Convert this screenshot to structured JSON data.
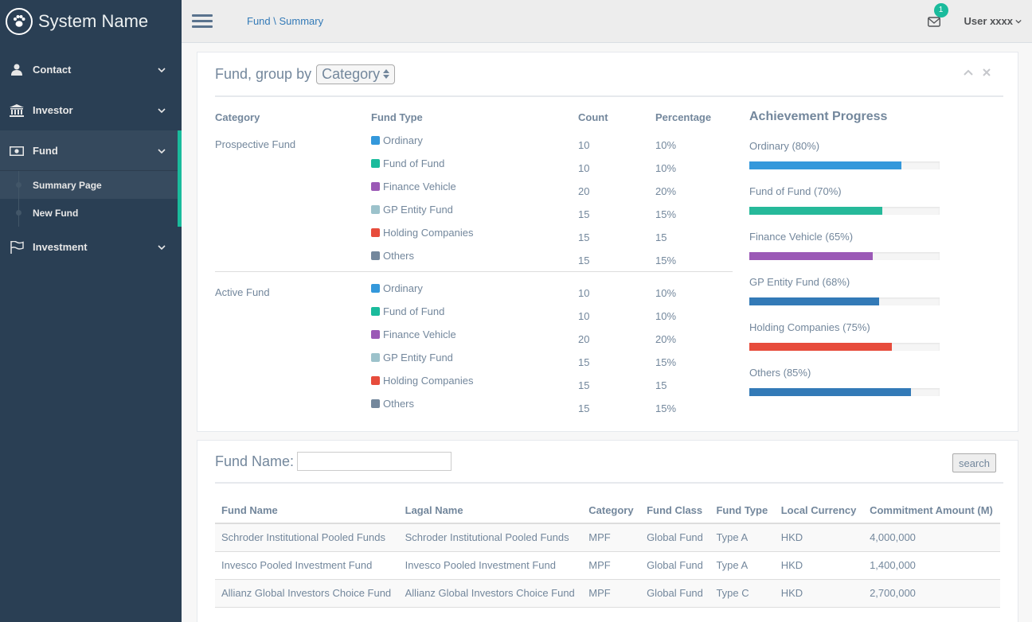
{
  "app": {
    "name": "System Name"
  },
  "sidebar": {
    "items": [
      {
        "label": "Contact",
        "icon": "user-icon"
      },
      {
        "label": "Investor",
        "icon": "bank-icon"
      },
      {
        "label": "Fund",
        "icon": "money-icon"
      },
      {
        "label": "Investment",
        "icon": "flag-icon"
      }
    ],
    "fund_children": [
      {
        "label": "Summary Page"
      },
      {
        "label": "New Fund"
      }
    ]
  },
  "topbar": {
    "breadcrumb": "Fund \\ Summary",
    "mail_count": "1",
    "user": "User xxxx"
  },
  "summary": {
    "title": "Fund, group by",
    "group_by": "Category",
    "headers": {
      "category": "Category",
      "fund_type": "Fund Type",
      "count": "Count",
      "percentage": "Percentage"
    },
    "groups": [
      {
        "category": "Prospective Fund",
        "rows": [
          {
            "type": "Ordinary",
            "count": "10",
            "pct": "10%"
          },
          {
            "type": "Fund of Fund",
            "count": "10",
            "pct": "10%"
          },
          {
            "type": "Finance Vehicle",
            "count": "20",
            "pct": "20%"
          },
          {
            "type": "GP Entity Fund",
            "count": "15",
            "pct": "15%"
          },
          {
            "type": "Holding Companies",
            "count": "15",
            "pct": "15"
          },
          {
            "type": "Others",
            "count": "15",
            "pct": "15%"
          }
        ]
      },
      {
        "category": "Active Fund",
        "rows": [
          {
            "type": "Ordinary",
            "count": "10",
            "pct": "10%"
          },
          {
            "type": "Fund of Fund",
            "count": "10",
            "pct": "10%"
          },
          {
            "type": "Finance Vehicle",
            "count": "20",
            "pct": "20%"
          },
          {
            "type": "GP Entity Fund",
            "count": "15",
            "pct": "15%"
          },
          {
            "type": "Holding Companies",
            "count": "15",
            "pct": "15"
          },
          {
            "type": "Others",
            "count": "15",
            "pct": "15%"
          }
        ]
      }
    ],
    "type_colors": {
      "Ordinary": "#3498db",
      "Fund of Fund": "#1abb9c",
      "Finance Vehicle": "#9b59b6",
      "GP Entity Fund": "#9cc2cb",
      "Holding Companies": "#e74c3c",
      "Others": "#73879c"
    },
    "achievement": {
      "title": "Achievement Progress",
      "items": [
        {
          "label": "Ordinary (80%)",
          "value": 0.8,
          "color": "#3498db"
        },
        {
          "label": "Fund of Fund (70%)",
          "value": 0.7,
          "color": "#26b99a"
        },
        {
          "label": "Finance Vehicle (65%)",
          "value": 0.65,
          "color": "#9b59b6"
        },
        {
          "label": "GP Entity Fund (68%)",
          "value": 0.68,
          "color": "#337ab7"
        },
        {
          "label": "Holding Companies (75%)",
          "value": 0.75,
          "color": "#e74c3c"
        },
        {
          "label": "Others (85%)",
          "value": 0.85,
          "color": "#337ab7"
        }
      ]
    }
  },
  "fund_search": {
    "label": "Fund Name:",
    "value": "",
    "button": "search",
    "columns": [
      "Fund Name",
      "Lagal Name",
      "Category",
      "Fund Class",
      "Fund Type",
      "Local Currency",
      "Commitment Amount (M)"
    ],
    "rows": [
      [
        "Schroder Institutional Pooled Funds",
        "Schroder Institutional Pooled Funds",
        "MPF",
        "Global Fund",
        "Type A",
        "HKD",
        "4,000,000"
      ],
      [
        "Invesco Pooled Investment Fund",
        "Invesco Pooled Investment Fund",
        "MPF",
        "Global Fund",
        "Type A",
        "HKD",
        "1,400,000"
      ],
      [
        "Allianz Global Investors Choice Fund",
        "Allianz Global Investors Choice Fund",
        "MPF",
        "Global Fund",
        "Type C",
        "HKD",
        "2,700,000"
      ]
    ]
  }
}
